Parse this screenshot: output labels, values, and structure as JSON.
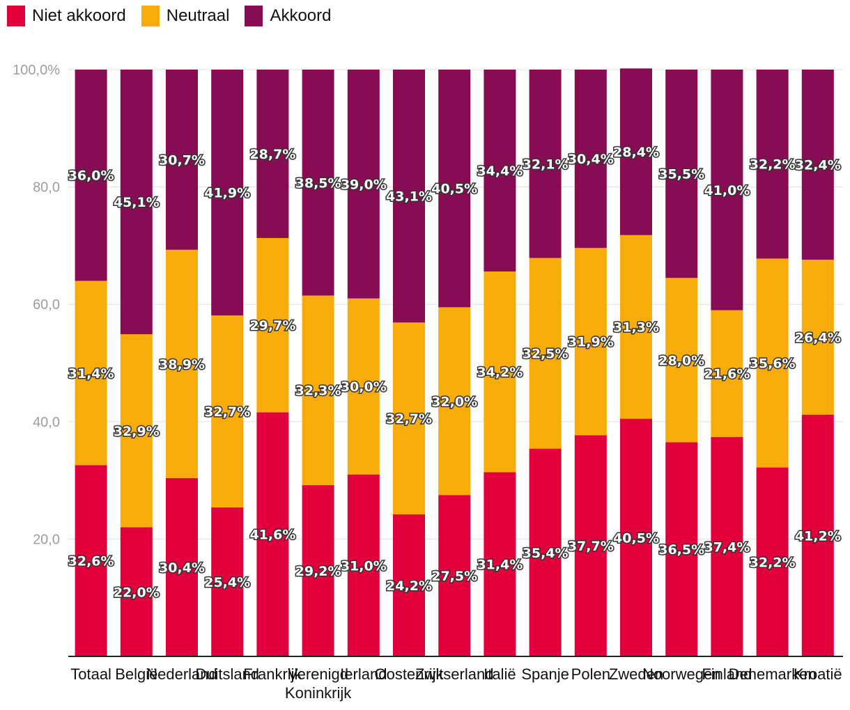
{
  "chart_data": {
    "type": "bar",
    "stacked": true,
    "categories": [
      "Totaal",
      "België",
      "Nederland",
      "Duitsland",
      "Frankrijk",
      "Verenigd Koninkrijk",
      "Ierland",
      "Oostenrijk",
      "Zwitserland",
      "Italië",
      "Spanje",
      "Polen",
      "Zweden",
      "Noorwegen",
      "Finland",
      "Denemarken",
      "Kroatië"
    ],
    "series": [
      {
        "name": "Niet akkoord",
        "color": "#e2003c",
        "values": [
          32.6,
          22.0,
          30.4,
          25.4,
          41.6,
          29.2,
          31.0,
          24.2,
          27.5,
          31.4,
          35.4,
          37.7,
          40.5,
          36.5,
          37.4,
          32.2,
          41.2
        ],
        "labels": [
          "32,6%",
          "22,0%",
          "30,4%",
          "25,4%",
          "41,6%",
          "29,2%",
          "31,0%",
          "24,2%",
          "27,5%",
          "31,4%",
          "35,4%",
          "37,7%",
          "40,5%",
          "36,5%",
          "37,4%",
          "32,2%",
          "41,2%"
        ]
      },
      {
        "name": "Neutraal",
        "color": "#f7ac0a",
        "values": [
          31.4,
          32.9,
          38.9,
          32.7,
          29.7,
          32.3,
          30.0,
          32.7,
          32.0,
          34.2,
          32.5,
          31.9,
          31.3,
          28.0,
          21.6,
          35.6,
          26.4
        ],
        "labels": [
          "31,4%",
          "32,9%",
          "38,9%",
          "32,7%",
          "29,7%",
          "32,3%",
          "30,0%",
          "32,7%",
          "32,0%",
          "34,2%",
          "32,5%",
          "31,9%",
          "31,3%",
          "28,0%",
          "21,6%",
          "35,6%",
          "26,4%"
        ]
      },
      {
        "name": "Akkoord",
        "color": "#870c53",
        "values": [
          36.0,
          45.1,
          30.7,
          41.9,
          28.7,
          38.5,
          39.0,
          43.1,
          40.5,
          34.4,
          32.1,
          30.4,
          28.4,
          35.5,
          41.0,
          32.2,
          32.4
        ],
        "labels": [
          "36,0%",
          "45,1%",
          "30,7%",
          "41,9%",
          "28,7%",
          "38,5%",
          "39,0%",
          "43,1%",
          "40,5%",
          "34,4%",
          "32,1%",
          "30,4%",
          "28,4%",
          "35,5%",
          "41,0%",
          "32,2%",
          "32,4%"
        ]
      }
    ],
    "yticks": [
      20,
      40,
      60,
      80,
      100
    ],
    "ytick_labels": [
      "20,0",
      "40,0",
      "60,0",
      "80,0",
      "100,0%"
    ],
    "ylim": [
      0,
      100
    ],
    "grid": true,
    "legend": "top-left"
  }
}
